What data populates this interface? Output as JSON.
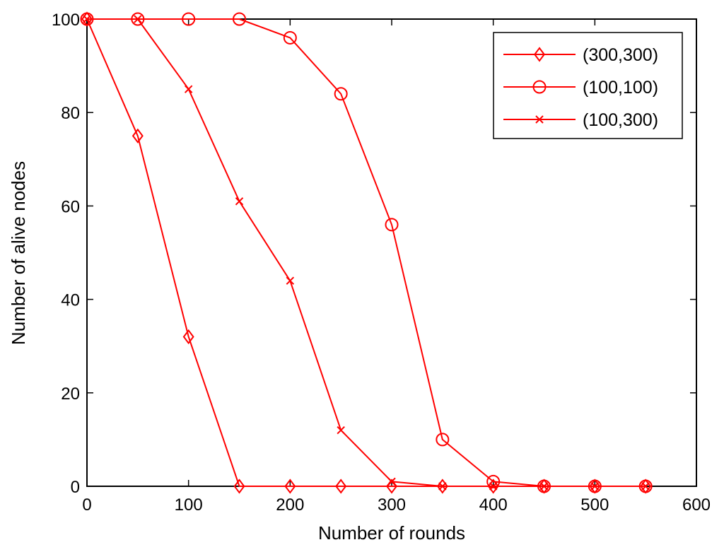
{
  "chart_data": {
    "type": "line",
    "title": "",
    "xlabel": "Number of rounds",
    "ylabel": "Number of alive nodes",
    "xlim": [
      0,
      600
    ],
    "ylim": [
      0,
      100
    ],
    "xticks": [
      0,
      100,
      200,
      300,
      400,
      500,
      600
    ],
    "yticks": [
      0,
      20,
      40,
      60,
      80,
      100
    ],
    "grid": false,
    "legend_position": "top-right",
    "series": [
      {
        "name": "(300,300)",
        "marker": "diamond-icon",
        "color": "#ff0000",
        "x": [
          0,
          50,
          100,
          150,
          200,
          250,
          300,
          350,
          400,
          450,
          500,
          550
        ],
        "y": [
          100,
          75,
          32,
          0,
          0,
          0,
          0,
          0,
          0,
          0,
          0,
          0
        ]
      },
      {
        "name": "(100,100)",
        "marker": "circle-icon",
        "color": "#ff0000",
        "x": [
          0,
          50,
          100,
          150,
          200,
          250,
          300,
          350,
          400,
          450,
          500,
          550
        ],
        "y": [
          100,
          100,
          100,
          100,
          96,
          84,
          56,
          10,
          1,
          0,
          0,
          0
        ]
      },
      {
        "name": "(100,300)",
        "marker": "cross-icon",
        "color": "#ff0000",
        "x": [
          0,
          50,
          100,
          150,
          200,
          250,
          300,
          350,
          400,
          450,
          500,
          550
        ],
        "y": [
          100,
          100,
          85,
          61,
          44,
          12,
          1,
          0,
          0,
          0,
          0,
          0
        ]
      }
    ]
  }
}
